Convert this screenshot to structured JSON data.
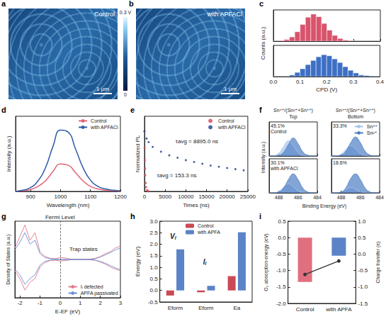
{
  "chart_data": [
    {
      "label": "a",
      "type": "image",
      "title": "Control",
      "scale_bar": "1 μm"
    },
    {
      "type": "colorbar",
      "range": [
        0,
        0.3
      ],
      "ticks": [
        0,
        {
          "value": 0.3,
          "label": "0.3 V"
        }
      ]
    },
    {
      "label": "b",
      "type": "image",
      "title": "with APFACl",
      "scale_bar": "1 μm"
    },
    {
      "label": "c",
      "type": "histogram",
      "xlabel": "CPD (V)",
      "ylabel": "Counts (a.u.)",
      "bins": [
        0,
        0.02,
        0.04,
        0.06,
        0.08,
        0.1,
        0.12,
        0.14,
        0.16,
        0.18,
        0.2,
        0.22,
        0.24,
        0.26,
        0.28,
        0.3,
        0.32,
        0.34,
        0.36,
        0.38,
        0.4
      ],
      "xlim": [
        0,
        0.4
      ],
      "xticks": [
        {
          "value": 0,
          "label": "0.0"
        },
        0.1,
        0.2,
        0.3,
        0.4
      ],
      "ylim": [
        0,
        60
      ],
      "tick_labels": "x",
      "series": [
        {
          "color": "#d9536b",
          "values": [
            0,
            1,
            3,
            8,
            18,
            32,
            46,
            52,
            47,
            34,
            21,
            11,
            5,
            2,
            1,
            0,
            0,
            0,
            0,
            0
          ]
        },
        {
          "color": "#3d6fc4",
          "values": [
            0,
            0,
            1,
            3,
            8,
            15,
            23,
            31,
            38,
            42,
            40,
            34,
            27,
            19,
            12,
            7,
            3,
            2,
            1,
            0
          ]
        }
      ]
    },
    {
      "label": "d",
      "type": "line",
      "xlabel": "Wavelength (nm)",
      "ylabel": "Intensity (a.u.)",
      "x": [
        850,
        875,
        900,
        925,
        950,
        975,
        1000,
        1025,
        1050,
        1075,
        1100,
        1125,
        1150,
        1175,
        1200
      ],
      "xlim": [
        850,
        1200
      ],
      "xticks": [
        900,
        1000,
        1100,
        1200
      ],
      "ylim": [
        0,
        1.2
      ],
      "tick_labels": "x",
      "legend": "top right",
      "series": [
        {
          "name": "Control",
          "color": "#e06377",
          "values": [
            0,
            0.01,
            0.03,
            0.08,
            0.17,
            0.32,
            0.44,
            0.42,
            0.3,
            0.17,
            0.08,
            0.04,
            0.02,
            0.01,
            0
          ]
        },
        {
          "name": "with APFACl",
          "color": "#2f5ca8",
          "values": [
            0,
            0.02,
            0.06,
            0.17,
            0.38,
            0.72,
            0.98,
            0.95,
            0.68,
            0.38,
            0.18,
            0.08,
            0.04,
            0.02,
            0.01
          ]
        }
      ]
    },
    {
      "label": "e",
      "type": "scatter",
      "marker": "circle",
      "xlabel": "Times (ns)",
      "ylabel": "Normalized PL",
      "xlim": [
        0,
        25000
      ],
      "xticks": [
        0,
        5000,
        10000,
        15000,
        20000,
        25000
      ],
      "ylim": [
        0,
        1.25
      ],
      "tick_labels": "x",
      "legend": "top right",
      "series": [
        {
          "name": "Control",
          "color": "#d6455a",
          "annotation": "τavg = 153.3 ns",
          "x": [
            0,
            50,
            100,
            150,
            200,
            300,
            400,
            600,
            800,
            1000
          ],
          "values": [
            1,
            0.72,
            0.52,
            0.38,
            0.27,
            0.14,
            0.07,
            0.02,
            0.01,
            0
          ]
        },
        {
          "name": "with APFACl",
          "color": "#1c3f8f",
          "annotation": "τavg = 8895.0 ns",
          "x": [
            0,
            500,
            1000,
            2000,
            4000,
            6000,
            8000,
            10000,
            12000,
            14000,
            16000,
            18000,
            20000,
            22000,
            24000
          ],
          "values": [
            1,
            0.88,
            0.82,
            0.74,
            0.66,
            0.6,
            0.56,
            0.52,
            0.49,
            0.46,
            0.43,
            0.41,
            0.39,
            0.37,
            0.35
          ]
        }
      ]
    },
    {
      "label": "f",
      "type": "area",
      "xlabel": "Binding Energy (eV)",
      "ylabel": "Intensity (a.u.)",
      "ratio_label": "Sn⁴⁺/(Sn²⁺+Sn⁴⁺)",
      "x": [
        489,
        488.5,
        488,
        487.5,
        487,
        486.5,
        486,
        485.5,
        485,
        484.5,
        484
      ],
      "xlim": [
        489,
        484
      ],
      "xticks": [
        488,
        486,
        484
      ],
      "ylim": [
        0,
        1.8
      ],
      "tick_labels": "x",
      "legend": "top right",
      "panels": [
        {
          "column": "Top",
          "row": "Control",
          "annotation": "45.1%",
          "series": [
            {
              "name": "Sn⁴⁺",
              "color": "#a8c5ea",
              "values": [
                0,
                0.02,
                0.15,
                0.5,
                0.8,
                0.55,
                0.18,
                0.03,
                0,
                0,
                0
              ]
            },
            {
              "name": "Sn²⁺",
              "color": "#4f7fc4",
              "values": [
                0,
                0,
                0.03,
                0.2,
                0.6,
                0.95,
                0.65,
                0.22,
                0.04,
                0,
                0
              ]
            }
          ]
        },
        {
          "column": "Bottom",
          "row": "Control",
          "annotation": "33.3%",
          "series": [
            {
              "name": "Sn⁴⁺",
              "color": "#a8c5ea",
              "values": [
                0,
                0.01,
                0.1,
                0.35,
                0.55,
                0.38,
                0.12,
                0.02,
                0,
                0,
                0
              ]
            },
            {
              "name": "Sn²⁺",
              "color": "#4f7fc4",
              "values": [
                0,
                0,
                0.04,
                0.25,
                0.7,
                1.0,
                0.7,
                0.25,
                0.05,
                0,
                0
              ]
            }
          ]
        },
        {
          "column": "Top",
          "row": "with APFACl",
          "annotation": "30.1%",
          "series": [
            {
              "name": "Sn⁴⁺",
              "color": "#a8c5ea",
              "values": [
                0,
                0.01,
                0.08,
                0.3,
                0.48,
                0.33,
                0.1,
                0.02,
                0,
                0,
                0
              ]
            },
            {
              "name": "Sn²⁺",
              "color": "#4f7fc4",
              "values": [
                0,
                0,
                0.04,
                0.25,
                0.7,
                1.0,
                0.7,
                0.25,
                0.05,
                0,
                0
              ]
            }
          ]
        },
        {
          "column": "Bottom",
          "row": "with APFACl",
          "annotation": "18.6%",
          "series": [
            {
              "name": "Sn⁴⁺",
              "color": "#a8c5ea",
              "values": [
                0,
                0.01,
                0.05,
                0.18,
                0.28,
                0.19,
                0.06,
                0.01,
                0,
                0,
                0
              ]
            },
            {
              "name": "Sn²⁺",
              "color": "#4f7fc4",
              "values": [
                0,
                0,
                0.04,
                0.27,
                0.75,
                1.0,
                0.7,
                0.25,
                0.05,
                0,
                0
              ]
            }
          ]
        }
      ]
    },
    {
      "label": "g",
      "type": "line",
      "xlabel": "E-EF (eV)",
      "ylabel": "Density of States (a.u.)",
      "x": [
        -2.25,
        -2,
        -1.75,
        -1.5,
        -1.25,
        -1,
        -0.75,
        -0.5,
        -0.25,
        0,
        0.25,
        0.5,
        0.75,
        1,
        1.25,
        1.5,
        1.75,
        2,
        2.25,
        2.5,
        2.75,
        3
      ],
      "xlim": [
        -2.25,
        3
      ],
      "xticks": [
        -2,
        -1,
        0,
        1,
        2,
        3
      ],
      "ylim": [
        -1,
        1
      ],
      "tick_labels": "x",
      "legend": "bottom right",
      "fermi_level": {
        "value": 0,
        "label": "Fermi Level"
      },
      "annotation": "Trap states",
      "series": [
        {
          "name": "Iᵢ defected",
          "color": "#e07b8a",
          "values": [
            0.3,
            0.6,
            0.9,
            0.5,
            0.7,
            0.2,
            0.08,
            0.03,
            0.02,
            0.05,
            0.04,
            0.01,
            0,
            0,
            0,
            0.01,
            0.03,
            0.08,
            0.15,
            0.2,
            0.3,
            0.35
          ],
          "values_down": [
            -0.3,
            -0.5,
            -0.8,
            -0.6,
            -0.5,
            -0.2,
            -0.08,
            -0.03,
            -0.02,
            -0.04,
            -0.03,
            -0.01,
            0,
            0,
            0,
            -0.01,
            -0.02,
            -0.07,
            -0.12,
            -0.2,
            -0.25,
            -0.3
          ]
        },
        {
          "name": "APFA passivated",
          "color": "#6d8fd0",
          "values": [
            0.25,
            0.45,
            0.7,
            0.4,
            0.5,
            0.15,
            0.05,
            0.02,
            0.01,
            0,
            0,
            0,
            0,
            0,
            0,
            0,
            0.02,
            0.06,
            0.12,
            0.18,
            0.25,
            0.3
          ],
          "values_down": [
            -0.25,
            -0.4,
            -0.65,
            -0.5,
            -0.4,
            -0.15,
            -0.05,
            -0.02,
            -0.01,
            0,
            0,
            0,
            0,
            0,
            0,
            0,
            -0.02,
            -0.05,
            -0.1,
            -0.16,
            -0.22,
            -0.27
          ]
        }
      ]
    },
    {
      "label": "h",
      "type": "bar",
      "categories": [
        "Eform",
        "Eform",
        "Ea"
      ],
      "ylabel": "Energy (eV)",
      "ylim": [
        -0.5,
        3
      ],
      "yticks": [
        -0.5,
        {
          "value": 0,
          "label": "0.0"
        },
        0.5,
        {
          "value": 1,
          "label": "1.0"
        },
        1.5,
        {
          "value": 2,
          "label": "2.0"
        },
        2.5,
        {
          "value": 3,
          "label": "3.0"
        }
      ],
      "legend": "top",
      "annotations": [
        {
          "text": "V",
          "sub": "I"
        },
        {
          "text": "I",
          "sub": "i"
        }
      ],
      "series": [
        {
          "name": "Control",
          "color": "#c94a55",
          "values": [
            -0.22,
            -0.08,
            0.62
          ]
        },
        {
          "name": "with APFA",
          "color": "#5b83c7",
          "values": [
            1.78,
            0.2,
            2.52
          ]
        }
      ]
    },
    {
      "label": "i",
      "type": "bar",
      "categories": [
        "Control",
        "with APFA"
      ],
      "ylabel": "O₂ absorption energy (eV)",
      "y2label": "Charge transfer (e)",
      "ylim": [
        -2,
        0.5
      ],
      "yticks": [
        {
          "value": -2,
          "label": "-2.0"
        },
        -1.5,
        {
          "value": -1,
          "label": "-1.0"
        },
        -0.5,
        {
          "value": 0,
          "label": "0.0"
        },
        0.5
      ],
      "y2lim": [
        -1.5,
        1
      ],
      "y2ticks": [
        -1.5,
        {
          "value": -1,
          "label": "-1.0"
        },
        -0.5,
        {
          "value": 0,
          "label": "0.0"
        },
        0.5,
        {
          "value": 1,
          "label": "1.0"
        }
      ],
      "series": [
        {
          "type": "bar",
          "axis": "y",
          "colors": [
            "#e0707e",
            "#5b83c7"
          ],
          "values": [
            -1.35,
            -0.55
          ]
        },
        {
          "type": "line",
          "axis": "y2",
          "color": "#333333",
          "marker": "circle",
          "values": [
            -0.62,
            -0.21
          ]
        }
      ]
    }
  ]
}
